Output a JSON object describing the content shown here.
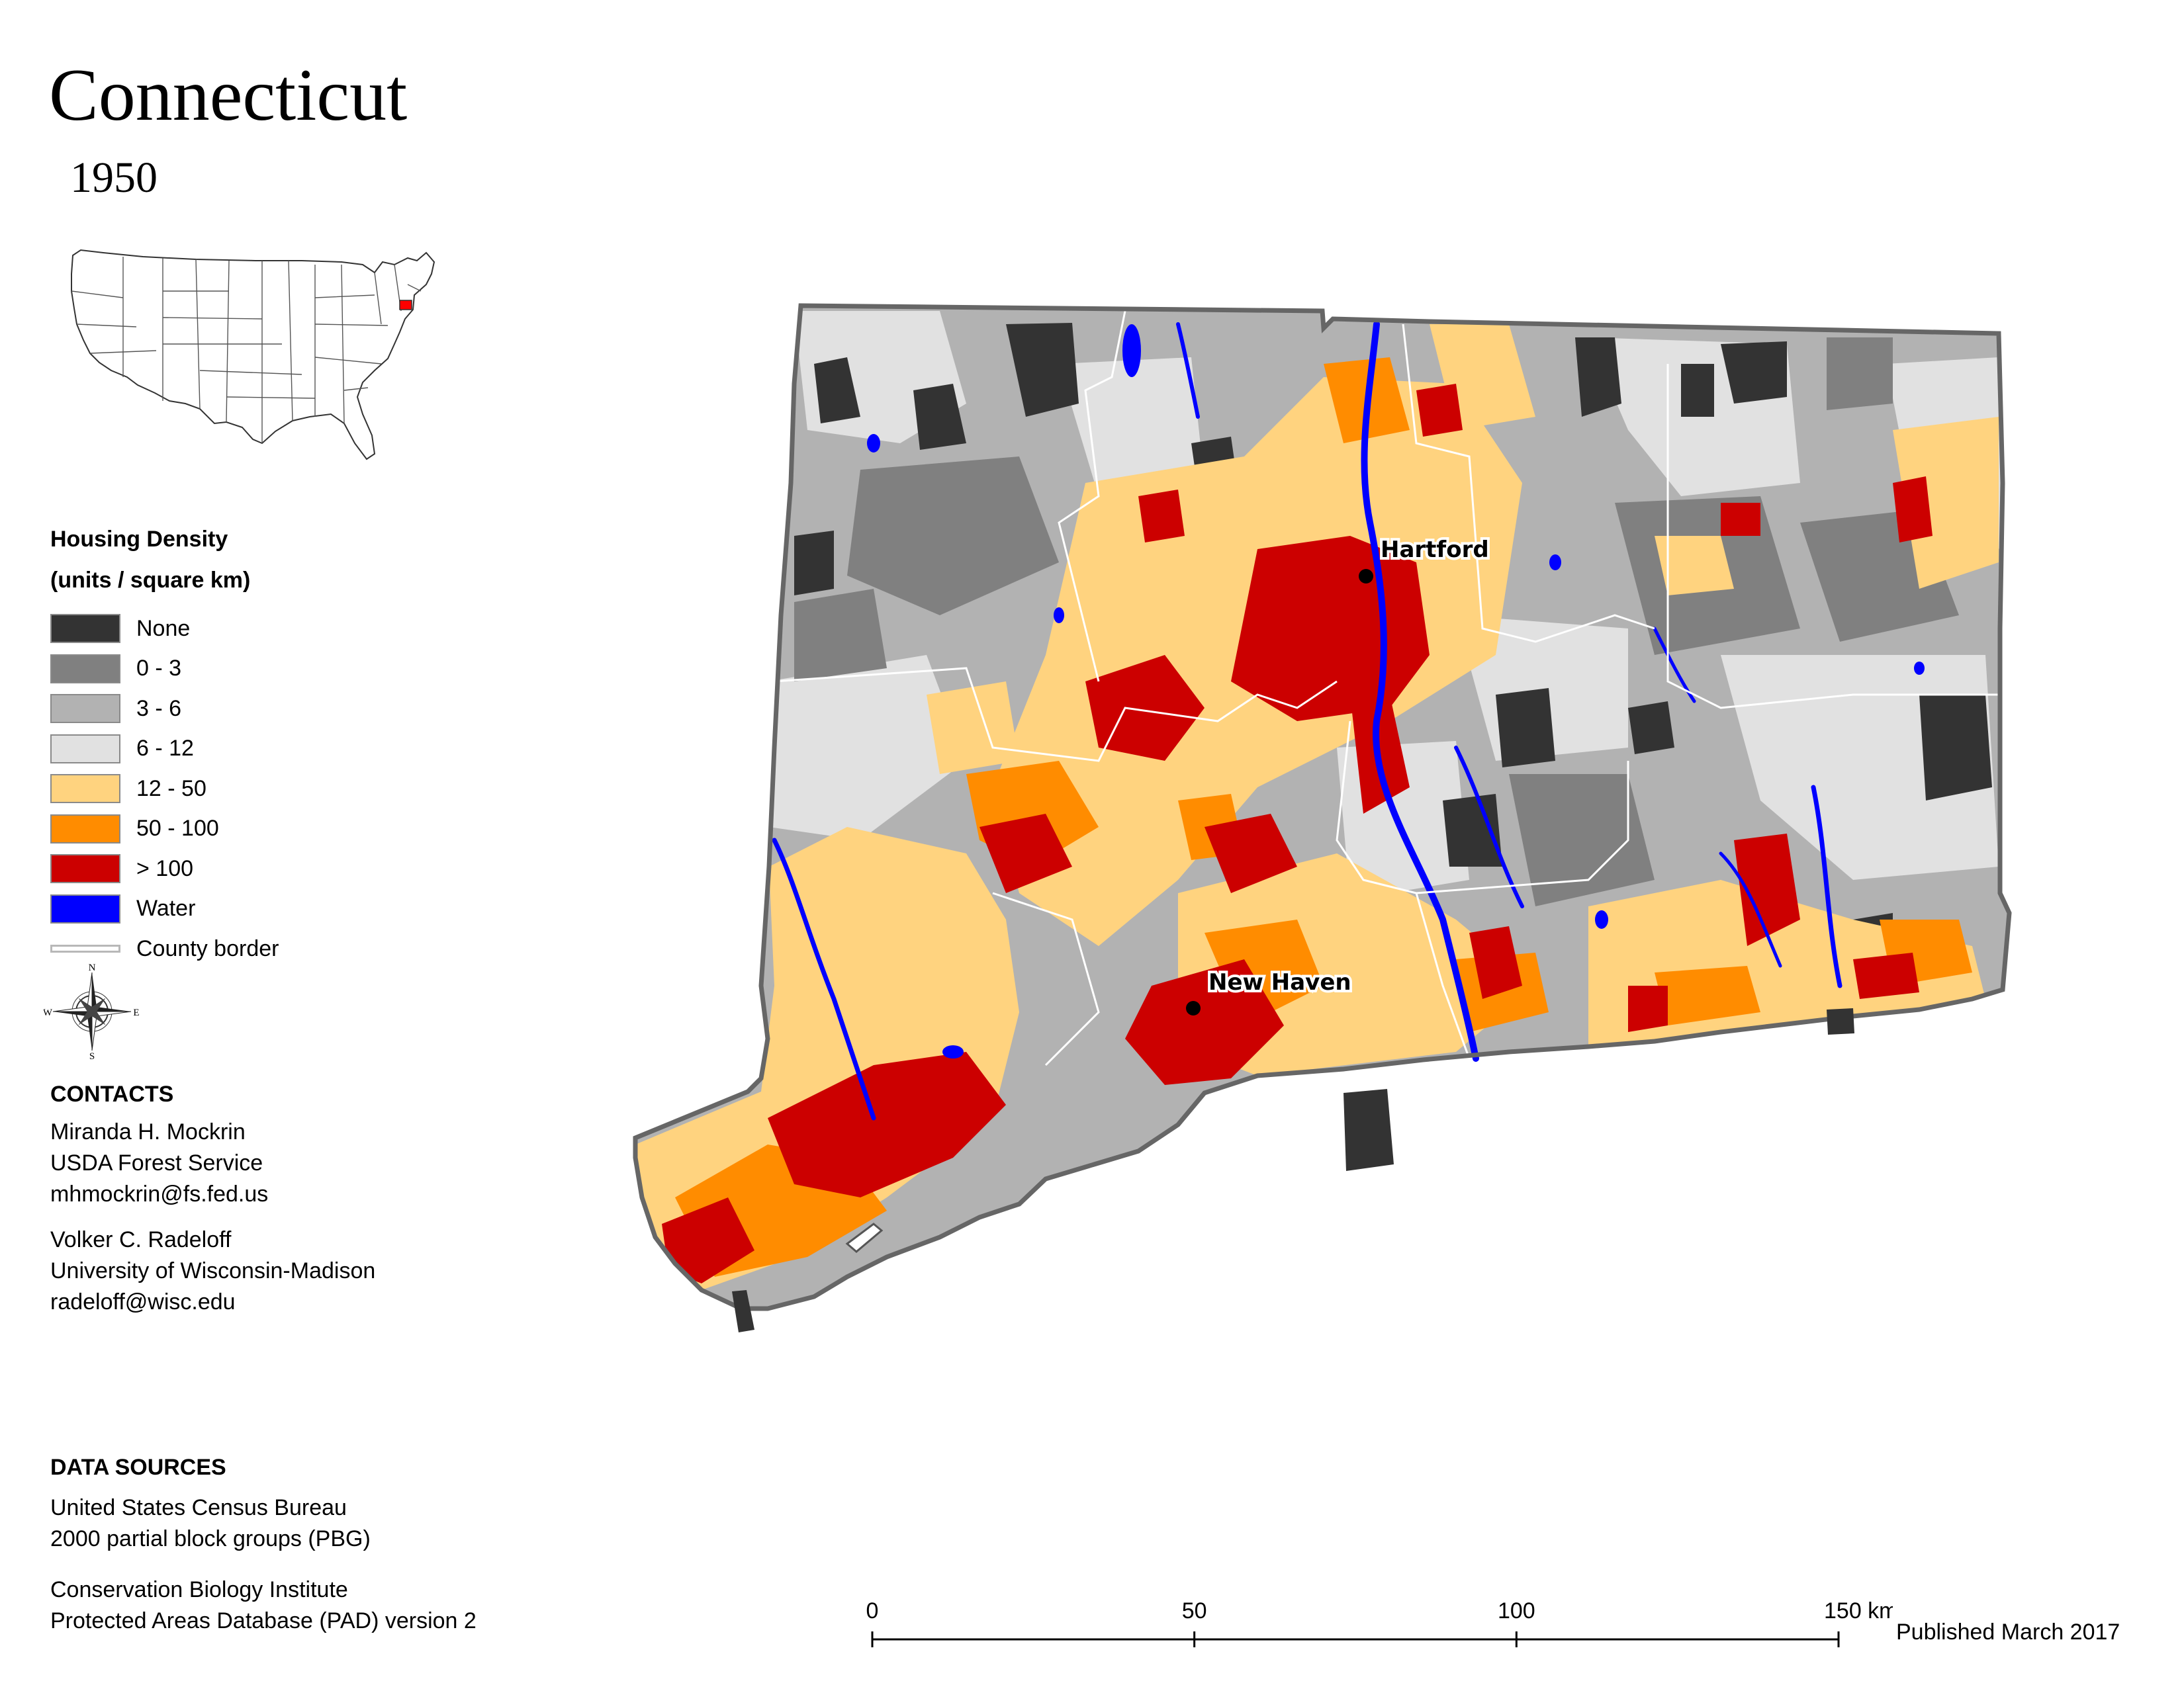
{
  "title": "Connecticut",
  "year": "1950",
  "legend": {
    "title_line1": "Housing Density",
    "title_line2": "(units / square km)",
    "items": [
      {
        "label": "None",
        "color": "#333333"
      },
      {
        "label": "0 - 3",
        "color": "#808080"
      },
      {
        "label": "3 - 6",
        "color": "#b2b2b2"
      },
      {
        "label": "6 - 12",
        "color": "#e1e1e1"
      },
      {
        "label": "12 - 50",
        "color": "#ffd37f"
      },
      {
        "label": "50 - 100",
        "color": "#ff8c00"
      },
      {
        "label": "> 100",
        "color": "#cc0000"
      },
      {
        "label": "Water",
        "color": "#0000ff"
      },
      {
        "label": "County border",
        "color": "#ffffff"
      }
    ]
  },
  "compass": {
    "n": "N",
    "s": "S",
    "e": "E",
    "w": "W"
  },
  "contacts": {
    "heading": "CONTACTS",
    "people": [
      {
        "name": "Miranda H. Mockrin",
        "org": "USDA Forest Service",
        "email": "mhmockrin@fs.fed.us"
      },
      {
        "name": "Volker C. Radeloff",
        "org": "University of Wisconsin-Madison",
        "email": "radeloff@wisc.edu"
      }
    ]
  },
  "data_sources": {
    "heading": "DATA SOURCES",
    "entries": [
      {
        "line1": "United States Census Bureau",
        "line2": "2000 partial block groups (PBG)"
      },
      {
        "line1": "Conservation Biology Institute",
        "line2": "Protected Areas Database (PAD) version 2"
      }
    ]
  },
  "map": {
    "cities": [
      {
        "name": "Hartford"
      },
      {
        "name": "New Haven"
      }
    ],
    "highlight_state_color": "#ff0000"
  },
  "scale": {
    "ticks": [
      "0",
      "50",
      "100",
      "150 km"
    ],
    "max_km": 150
  },
  "published": "Published March 2017"
}
